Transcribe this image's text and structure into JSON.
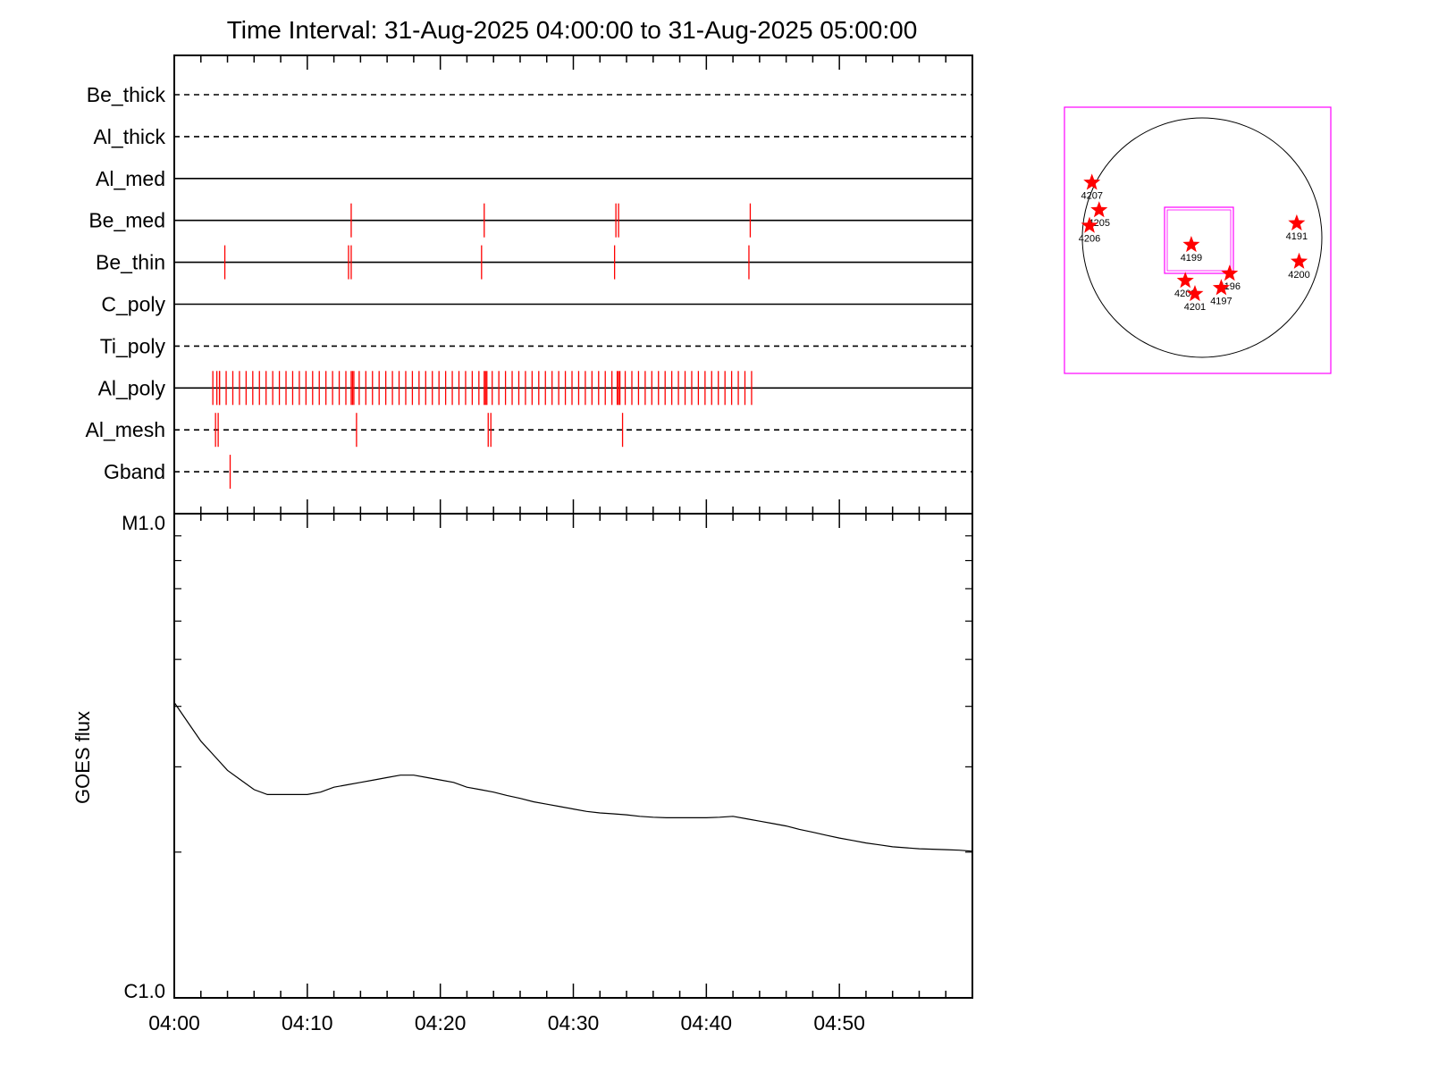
{
  "title": "Time Interval: 31-Aug-2025 04:00:00 to 31-Aug-2025 05:00:00",
  "colors": {
    "event": "#ff0000",
    "axis": "#000000",
    "box": "#ff00ff",
    "star": "#ff0000"
  },
  "chart_data": [
    {
      "type": "timeline",
      "x_range_min": [
        0,
        60
      ],
      "x_tick_labels": [
        "04:00",
        "04:10",
        "04:20",
        "04:30",
        "04:40",
        "04:50"
      ],
      "rows": [
        {
          "name": "Be_thick",
          "line": "dashed",
          "events": []
        },
        {
          "name": "Al_thick",
          "line": "dashed",
          "events": []
        },
        {
          "name": "Al_med",
          "line": "solid",
          "events": []
        },
        {
          "name": "Be_med",
          "line": "solid",
          "events": [
            13.3,
            23.3,
            33.2,
            33.4,
            43.3
          ]
        },
        {
          "name": "Be_thin",
          "line": "solid",
          "events": [
            3.8,
            13.1,
            13.3,
            23.1,
            33.1,
            43.2
          ]
        },
        {
          "name": "C_poly",
          "line": "solid",
          "events": []
        },
        {
          "name": "Ti_poly",
          "line": "dashed",
          "events": []
        },
        {
          "name": "Al_poly",
          "line": "solid",
          "events_range": {
            "start": 2.9,
            "end": 43.5,
            "step": 0.5
          },
          "extra_events": [
            3.2,
            3.4,
            13.3,
            13.5,
            23.3,
            23.5,
            33.3,
            33.5
          ]
        },
        {
          "name": "Al_mesh",
          "line": "dashed",
          "events": [
            3.1,
            3.3,
            13.7,
            23.6,
            23.8,
            33.7
          ]
        },
        {
          "name": "Gband",
          "line": "dashed",
          "events": [
            4.2
          ]
        }
      ]
    },
    {
      "type": "line",
      "ylabel": "GOES flux",
      "y_tick_labels": [
        "M1.0",
        "C1.0"
      ],
      "ylim_log": [
        -6,
        -5
      ],
      "x_range_min": [
        0,
        60
      ],
      "x_tick_labels": [
        "04:00",
        "04:10",
        "04:20",
        "04:30",
        "04:40",
        "04:50"
      ],
      "x": [
        0,
        1,
        2,
        3,
        4,
        5,
        6,
        7,
        8,
        9,
        10,
        11,
        12,
        13,
        14,
        15,
        16,
        17,
        18,
        19,
        20,
        21,
        22,
        23,
        24,
        25,
        26,
        27,
        28,
        29,
        30,
        31,
        32,
        33,
        34,
        35,
        36,
        37,
        38,
        39,
        40,
        41,
        42,
        43,
        44,
        45,
        46,
        47,
        48,
        49,
        50,
        51,
        52,
        53,
        54,
        55,
        56,
        57,
        58,
        59,
        60
      ],
      "y_log": [
        -5.39,
        -5.43,
        -5.47,
        -5.5,
        -5.53,
        -5.55,
        -5.57,
        -5.58,
        -5.58,
        -5.58,
        -5.58,
        -5.575,
        -5.565,
        -5.56,
        -5.555,
        -5.55,
        -5.545,
        -5.54,
        -5.54,
        -5.545,
        -5.55,
        -5.555,
        -5.565,
        -5.57,
        -5.575,
        -5.582,
        -5.588,
        -5.595,
        -5.6,
        -5.605,
        -5.61,
        -5.615,
        -5.618,
        -5.62,
        -5.622,
        -5.625,
        -5.627,
        -5.628,
        -5.628,
        -5.628,
        -5.628,
        -5.627,
        -5.625,
        -5.63,
        -5.635,
        -5.64,
        -5.645,
        -5.652,
        -5.658,
        -5.664,
        -5.67,
        -5.675,
        -5.68,
        -5.684,
        -5.688,
        -5.69,
        -5.692,
        -5.693,
        -5.694,
        -5.695,
        -5.697
      ]
    },
    {
      "type": "scatter",
      "subtype": "solar-disk-map",
      "points": [
        {
          "label": "4207",
          "x": -0.92,
          "y": 0.46
        },
        {
          "label": "4205",
          "x": -0.86,
          "y": 0.23
        },
        {
          "label": "4206",
          "x": -0.94,
          "y": 0.1
        },
        {
          "label": "4199",
          "x": -0.09,
          "y": -0.06
        },
        {
          "label": "4191",
          "x": 0.79,
          "y": 0.12
        },
        {
          "label": "4200",
          "x": 0.81,
          "y": -0.2
        },
        {
          "label": "4196",
          "x": 0.23,
          "y": -0.3
        },
        {
          "label": "4202",
          "x": -0.14,
          "y": -0.36
        },
        {
          "label": "4197",
          "x": 0.16,
          "y": -0.42
        },
        {
          "label": "4201",
          "x": -0.06,
          "y": -0.47
        }
      ]
    }
  ]
}
